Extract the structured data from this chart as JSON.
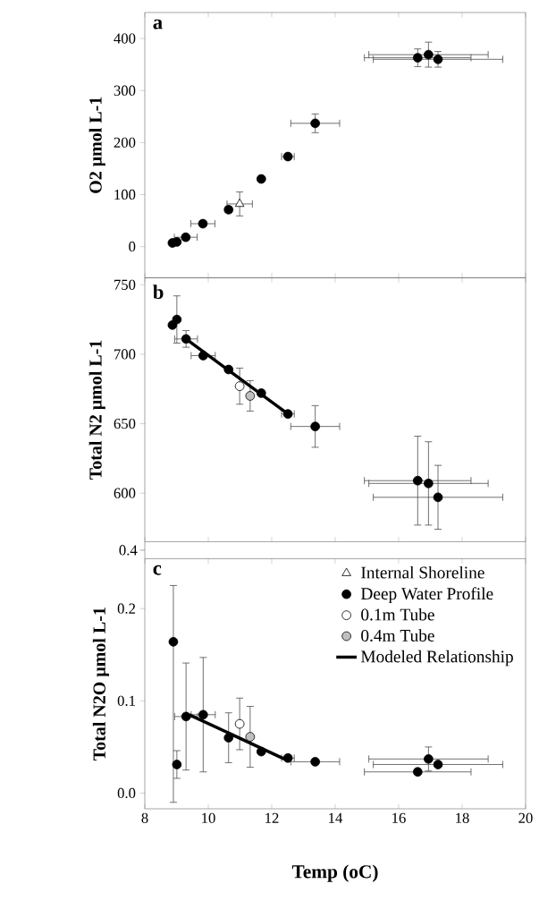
{
  "chart_data": [
    {
      "type": "scatter",
      "ylabel": "O2 μmol L-1",
      "annotations": [
        "a"
      ],
      "xlim": [
        8,
        20
      ],
      "xticks": [
        8,
        10,
        12,
        14,
        16,
        18,
        20
      ],
      "ylim": [
        -60,
        450
      ],
      "yticks": [
        0,
        100,
        200,
        300,
        400
      ],
      "tick_labels": "y",
      "marker": "circle",
      "series": [
        {
          "color": "#000000",
          "x": [
            8.87,
            9.01,
            9.29,
            9.83,
            10.64,
            11.67,
            12.51,
            13.37,
            16.6,
            16.94,
            17.24
          ],
          "values": [
            7,
            9,
            18,
            44,
            71,
            130,
            173,
            237,
            363,
            369,
            360
          ],
          "errors": [
            null,
            null,
            null,
            null,
            null,
            null,
            null,
            18,
            17,
            24,
            15
          ],
          "xerrors": [
            null,
            null,
            0.36,
            0.38,
            0.1,
            null,
            0.2,
            0.77,
            1.68,
            1.88,
            2.04
          ]
        },
        {
          "color": "#ffffff",
          "marker": "triangle",
          "x": [
            10.99
          ],
          "values": [
            82
          ],
          "errors": [
            23
          ],
          "xerrors": [
            0.4
          ]
        }
      ]
    },
    {
      "type": "scatter",
      "ylabel": "Total N2 μmol L-1",
      "annotations": [
        "b"
      ],
      "xlim": [
        8,
        20
      ],
      "xticks": [
        8,
        10,
        12,
        14,
        16,
        18,
        20
      ],
      "ylim": [
        565,
        755
      ],
      "yticks": [
        600,
        650,
        700,
        750
      ],
      "tick_labels": "y",
      "marker": "circle",
      "series": [
        {
          "color": "#000000",
          "x": [
            8.87,
            9.01,
            9.3,
            9.84,
            10.64,
            11.67,
            12.51,
            13.37,
            16.6,
            16.94,
            17.24
          ],
          "values": [
            721,
            725,
            711,
            699,
            689,
            672,
            657,
            648,
            609,
            607,
            597
          ],
          "errors": [
            null,
            17,
            6,
            null,
            null,
            null,
            null,
            15,
            32,
            30,
            23
          ],
          "xerrors": [
            null,
            null,
            0.36,
            0.38,
            null,
            null,
            0.2,
            0.77,
            1.68,
            1.88,
            2.04
          ]
        },
        {
          "color": "#ffffff",
          "x": [
            10.99
          ],
          "values": [
            677
          ],
          "errors": [
            13
          ]
        },
        {
          "color": "#bfbfbf",
          "x": [
            11.32
          ],
          "values": [
            670
          ],
          "errors": [
            11
          ]
        },
        {
          "type": "line",
          "marker": "none",
          "color": "#000000",
          "x": [
            9.3,
            12.51
          ],
          "values": [
            711,
            657
          ]
        }
      ]
    },
    {
      "type": "other",
      "annotations": [
        "0.4"
      ]
    },
    {
      "type": "scatter",
      "ylabel": "Total N2O μmol L-1",
      "xlabel": "Temp (oC)",
      "annotations": [
        "c"
      ],
      "xlim": [
        8,
        20
      ],
      "xticks": [
        8,
        10,
        12,
        14,
        16,
        18,
        20
      ],
      "ylim": [
        -0.017,
        0.254
      ],
      "yticks": [
        {
          "value": 0,
          "label": "0.0"
        },
        0.1,
        0.2
      ],
      "marker": "circle",
      "legend": "top right",
      "series": [
        {
          "name": "Internal Shoreline",
          "color": "#ffffff",
          "marker": "triangle"
        },
        {
          "name": "Deep Water Profile",
          "color": "#000000",
          "x": [
            8.9,
            9.01,
            9.3,
            9.84,
            10.64,
            11.67,
            12.51,
            13.37,
            16.6,
            16.94,
            17.24
          ],
          "values": [
            0.164,
            0.031,
            0.083,
            0.085,
            0.06,
            0.045,
            0.038,
            0.034,
            0.023,
            0.037,
            0.031
          ],
          "errors": [
            [
              -0.01,
              0.225
            ],
            0.015,
            0.058,
            0.062,
            0.027,
            null,
            null,
            null,
            null,
            0.013,
            null
          ],
          "xerrors": [
            null,
            null,
            0.36,
            0.38,
            null,
            null,
            0.2,
            0.77,
            1.68,
            1.88,
            2.04
          ]
        },
        {
          "name": "0.1m Tube",
          "color": "#ffffff",
          "x": [
            10.99
          ],
          "values": [
            0.075
          ],
          "errors": [
            0.028
          ]
        },
        {
          "name": "0.4m Tube",
          "color": "#bfbfbf",
          "x": [
            11.32
          ],
          "values": [
            0.061
          ],
          "errors": [
            0.033
          ]
        },
        {
          "name": "Modeled Relationship",
          "type": "line",
          "marker": "none",
          "color": "#000000",
          "x": [
            9.4,
            12.4
          ],
          "values": [
            0.085,
            0.037
          ]
        }
      ]
    }
  ]
}
